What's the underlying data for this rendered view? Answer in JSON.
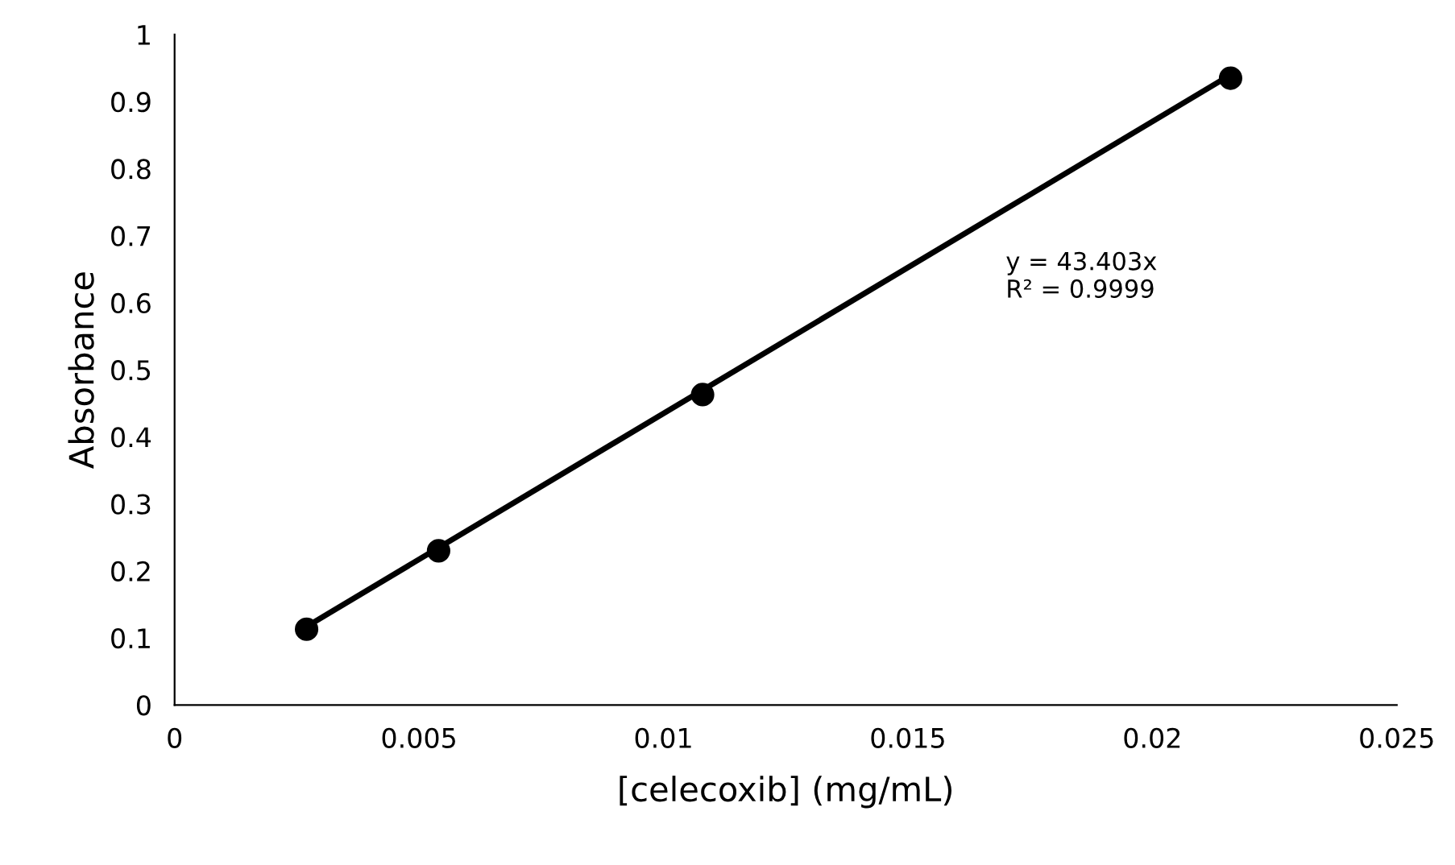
{
  "chart_data": {
    "type": "scatter",
    "xlabel": "[celecoxib] (mg/mL)",
    "ylabel": "Absorbance",
    "series": [
      {
        "color": "#000000",
        "x": [
          0.0027,
          0.0054,
          0.0108,
          0.0216
        ],
        "values": [
          0.113,
          0.23,
          0.463,
          0.935
        ],
        "marker": "circle"
      },
      {
        "type": "line",
        "color": "#000000",
        "x": [
          0.0027,
          0.0216
        ],
        "values": [
          0.117,
          0.94
        ],
        "line_style": "solid",
        "marker": "none"
      }
    ],
    "annotations": [
      "y = 43.403x\nR² = 0.9999"
    ],
    "xlim": [
      0,
      0.025
    ],
    "xticks": [
      0,
      0.005,
      0.01,
      0.015,
      0.02,
      0.025
    ],
    "ylim": [
      0,
      1
    ],
    "yticks": [
      0,
      0.1,
      0.2,
      0.3,
      0.4,
      0.5,
      0.6,
      0.7,
      0.8,
      0.9,
      1
    ],
    "grid": false,
    "legend": false
  }
}
